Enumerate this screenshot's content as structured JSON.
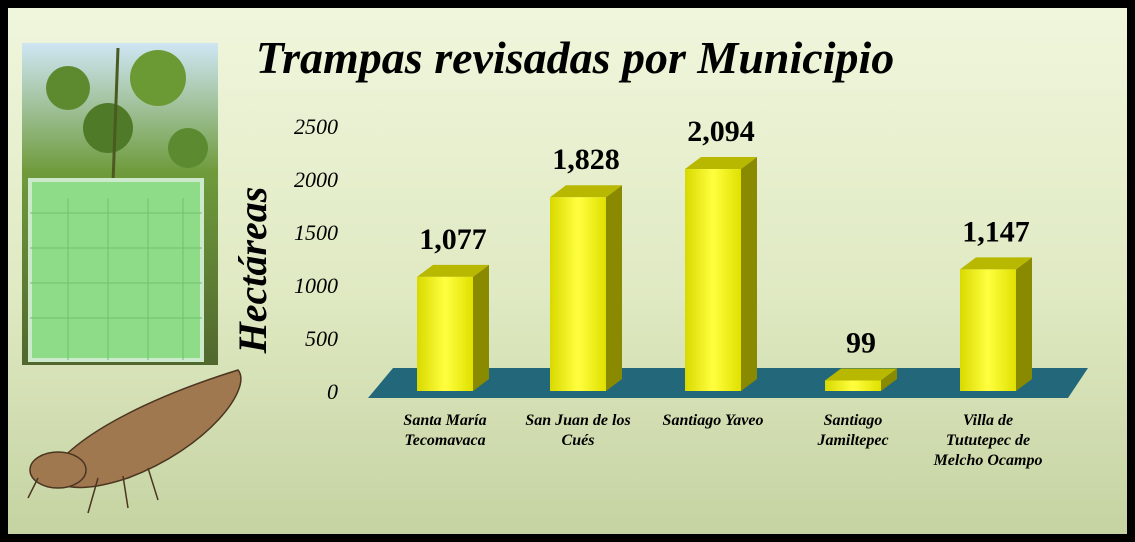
{
  "chart_data": {
    "type": "bar3d",
    "title": "Trampas revisadas por Municipio",
    "y_axis_title": "Hectáreas",
    "categories": [
      "Santa María Tecomavaca",
      "San Juan de los Cués",
      "Santiago Yaveo",
      "Santiago Jamiltepec",
      "Villa de Tututepec de Melcho Ocampo"
    ],
    "values": [
      1077,
      1828,
      2094,
      99,
      1147
    ],
    "value_labels": [
      "1,077",
      "1,828",
      "2,094",
      "99",
      "1,147"
    ],
    "color": "#ffff00",
    "ylim": [
      0,
      2500
    ],
    "yticks": [
      0,
      500,
      1000,
      1500,
      2000,
      2500
    ]
  }
}
